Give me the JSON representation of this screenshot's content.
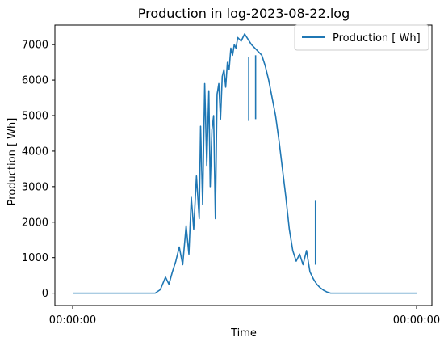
{
  "chart_data": {
    "type": "line",
    "title": "Production in log-2023-08-22.log",
    "xlabel": "Time",
    "ylabel": "Production [  Wh]",
    "x_tick_labels": [
      "00:00:00",
      "00:00:00"
    ],
    "y_ticks": [
      0,
      1000,
      2000,
      3000,
      4000,
      5000,
      6000,
      7000
    ],
    "ylim": [
      -350,
      7550
    ],
    "xlim": [
      0,
      1
    ],
    "grid": false,
    "legend": {
      "position": "top-right",
      "entries": [
        "Production [  Wh]"
      ]
    },
    "series": [
      {
        "name": "Production [  Wh]",
        "color": "#1f77b4",
        "x": [
          0.0,
          0.06,
          0.12,
          0.18,
          0.24,
          0.255,
          0.27,
          0.28,
          0.29,
          0.3,
          0.31,
          0.32,
          0.33,
          0.338,
          0.345,
          0.352,
          0.36,
          0.368,
          0.372,
          0.378,
          0.384,
          0.39,
          0.396,
          0.4,
          0.405,
          0.41,
          0.415,
          0.42,
          0.425,
          0.43,
          0.435,
          0.44,
          0.445,
          0.45,
          0.455,
          0.46,
          0.465,
          0.47,
          0.475,
          0.48,
          0.49,
          0.5,
          0.51,
          0.52,
          0.53,
          0.54,
          0.55,
          0.56,
          0.57,
          0.58,
          0.59,
          0.6,
          0.61,
          0.62,
          0.63,
          0.64,
          0.65,
          0.66,
          0.67,
          0.68,
          0.69,
          0.7,
          0.71,
          0.72,
          0.73,
          0.74,
          0.75,
          0.76,
          0.77,
          0.78,
          0.79,
          0.8,
          0.81,
          0.82,
          0.83,
          0.84,
          0.85,
          1.0
        ],
        "y": [
          0,
          0,
          0,
          0,
          0,
          100,
          450,
          250,
          600,
          900,
          1300,
          800,
          1900,
          1100,
          2700,
          1800,
          3300,
          2100,
          4700,
          2500,
          5900,
          3600,
          5700,
          3000,
          4600,
          5000,
          2100,
          5600,
          5900,
          4900,
          6100,
          6300,
          5800,
          6500,
          6300,
          6900,
          6700,
          7000,
          6900,
          7200,
          7100,
          7300,
          7150,
          7000,
          6900,
          6800,
          6700,
          6400,
          6000,
          5500,
          5000,
          4300,
          3500,
          2700,
          1800,
          1200,
          900,
          1100,
          800,
          1200,
          600,
          400,
          250,
          150,
          80,
          30,
          0,
          0,
          0,
          0,
          0,
          0,
          0,
          0,
          0,
          0,
          0,
          0
        ]
      }
    ],
    "annotations": [
      {
        "x": 0.512,
        "y": 4850,
        "kind": "dip"
      },
      {
        "x": 0.532,
        "y": 4900,
        "kind": "dip"
      },
      {
        "x": 0.706,
        "y": 800,
        "kind": "dip"
      }
    ]
  }
}
